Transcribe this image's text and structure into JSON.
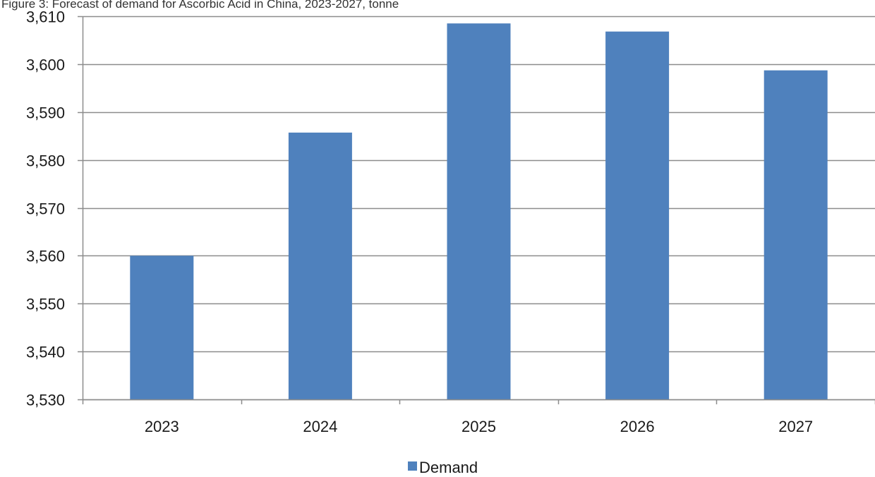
{
  "chart_data": {
    "type": "bar",
    "title": "Figure 3: Forecast of demand for Ascorbic Acid in China, 2023-2027, tonne",
    "categories": [
      "2023",
      "2024",
      "2025",
      "2026",
      "2027"
    ],
    "series": [
      {
        "name": "Demand",
        "color": "#4f81bd",
        "values": [
          3560,
          3585.7,
          3608.5,
          3606.8,
          3598.7
        ]
      }
    ],
    "ylim": [
      3530,
      3610
    ],
    "yticks": [
      3530,
      3540,
      3550,
      3560,
      3570,
      3580,
      3590,
      3600,
      3610
    ],
    "ytick_labels": [
      "3,530",
      "3,540",
      "3,550",
      "3,560",
      "3,570",
      "3,580",
      "3,590",
      "3,600",
      "3,610"
    ],
    "grid": true,
    "legend": "bottom-center",
    "xlabel": "",
    "ylabel": ""
  }
}
